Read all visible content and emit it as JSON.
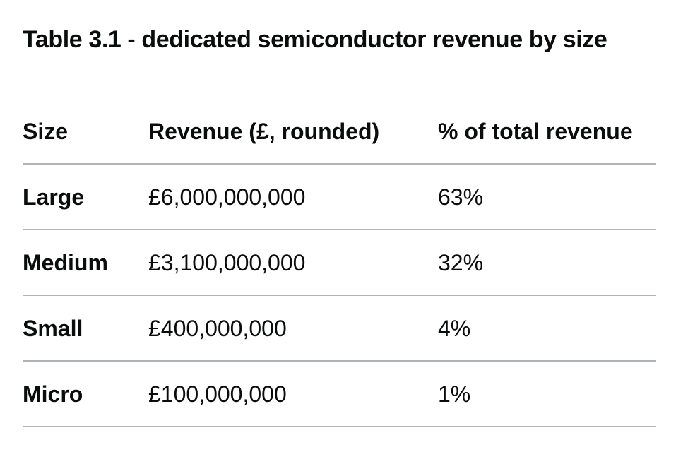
{
  "table": {
    "caption": "Table 3.1 - dedicated semiconductor revenue by size",
    "headers": [
      "Size",
      "Revenue (£, rounded)",
      "% of total revenue"
    ],
    "rows": [
      [
        "Large",
        "£6,000,000,000",
        "63%"
      ],
      [
        "Medium",
        "£3,100,000,000",
        "32%"
      ],
      [
        "Small",
        "£400,000,000",
        "4%"
      ],
      [
        "Micro",
        "£100,000,000",
        "1%"
      ]
    ]
  }
}
